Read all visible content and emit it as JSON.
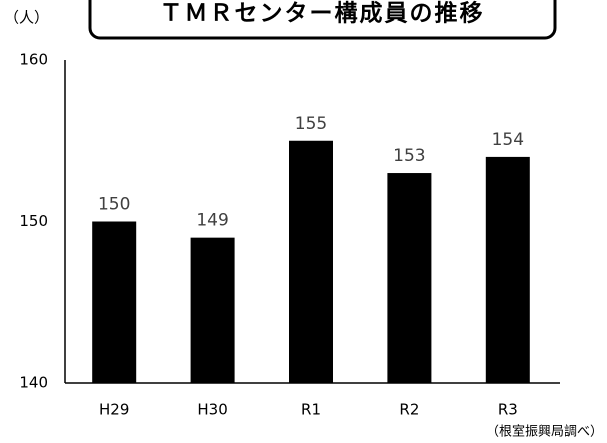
{
  "chart_data": {
    "type": "bar",
    "title": "ＴＭＲセンター構成員の推移",
    "y_axis_label": "（人）",
    "source": "（根室振興局調べ）",
    "categories": [
      "H29",
      "H30",
      "R1",
      "R2",
      "R3"
    ],
    "values": [
      150,
      149,
      155,
      153,
      154
    ],
    "color": "#000000",
    "ylim": [
      140,
      160
    ],
    "yticks": [
      140,
      150,
      160
    ],
    "grid": false
  }
}
